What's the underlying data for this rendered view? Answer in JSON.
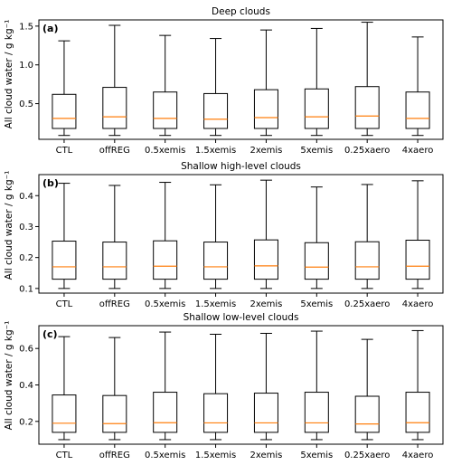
{
  "figure": {
    "ylabel": "All cloud water / g kg⁻¹"
  },
  "chart_data": [
    {
      "type": "box",
      "panel_label": "(a)",
      "title": "Deep clouds",
      "categories": [
        "CTL",
        "offREG",
        "0.5xemis",
        "1.5xemis",
        "2xemis",
        "5xemis",
        "0.25xaero",
        "4xaero"
      ],
      "ylim": [
        0.04,
        1.58
      ],
      "yticks": [
        0.5,
        1.0,
        1.5
      ],
      "ytick_labels": [
        "0.5",
        "1.0",
        "1.5"
      ],
      "boxes": [
        {
          "whislo": 0.09,
          "q1": 0.18,
          "med": 0.31,
          "q3": 0.62,
          "whishi": 1.31
        },
        {
          "whislo": 0.09,
          "q1": 0.18,
          "med": 0.33,
          "q3": 0.71,
          "whishi": 1.51
        },
        {
          "whislo": 0.09,
          "q1": 0.18,
          "med": 0.31,
          "q3": 0.65,
          "whishi": 1.38
        },
        {
          "whislo": 0.09,
          "q1": 0.18,
          "med": 0.3,
          "q3": 0.63,
          "whishi": 1.34
        },
        {
          "whislo": 0.09,
          "q1": 0.18,
          "med": 0.32,
          "q3": 0.68,
          "whishi": 1.45
        },
        {
          "whislo": 0.09,
          "q1": 0.18,
          "med": 0.33,
          "q3": 0.69,
          "whishi": 1.47
        },
        {
          "whislo": 0.09,
          "q1": 0.18,
          "med": 0.34,
          "q3": 0.72,
          "whishi": 1.55
        },
        {
          "whislo": 0.09,
          "q1": 0.18,
          "med": 0.31,
          "q3": 0.65,
          "whishi": 1.36
        }
      ]
    },
    {
      "type": "box",
      "panel_label": "(b)",
      "title": "Shallow high-level clouds",
      "categories": [
        "CTL",
        "offREG",
        "0.5xemis",
        "1.5xemis",
        "2xemis",
        "5xemis",
        "0.25xaero",
        "4xaero"
      ],
      "ylim": [
        0.085,
        0.468
      ],
      "yticks": [
        0.1,
        0.2,
        0.3,
        0.4
      ],
      "ytick_labels": [
        "0.1",
        "0.2",
        "0.3",
        "0.4"
      ],
      "boxes": [
        {
          "whislo": 0.1,
          "q1": 0.13,
          "med": 0.17,
          "q3": 0.253,
          "whishi": 0.44
        },
        {
          "whislo": 0.1,
          "q1": 0.13,
          "med": 0.17,
          "q3": 0.25,
          "whishi": 0.433
        },
        {
          "whislo": 0.1,
          "q1": 0.13,
          "med": 0.172,
          "q3": 0.254,
          "whishi": 0.443
        },
        {
          "whislo": 0.1,
          "q1": 0.13,
          "med": 0.17,
          "q3": 0.25,
          "whishi": 0.435
        },
        {
          "whislo": 0.1,
          "q1": 0.13,
          "med": 0.173,
          "q3": 0.257,
          "whishi": 0.45
        },
        {
          "whislo": 0.1,
          "q1": 0.13,
          "med": 0.169,
          "q3": 0.248,
          "whishi": 0.428
        },
        {
          "whislo": 0.1,
          "q1": 0.13,
          "med": 0.17,
          "q3": 0.251,
          "whishi": 0.436
        },
        {
          "whislo": 0.1,
          "q1": 0.13,
          "med": 0.172,
          "q3": 0.256,
          "whishi": 0.448
        }
      ]
    },
    {
      "type": "box",
      "panel_label": "(c)",
      "title": "Shallow low-level clouds",
      "categories": [
        "CTL",
        "offREG",
        "0.5xemis",
        "1.5xemis",
        "2xemis",
        "5xemis",
        "0.25xaero",
        "4xaero"
      ],
      "ylim": [
        0.075,
        0.725
      ],
      "yticks": [
        0.2,
        0.4,
        0.6
      ],
      "ytick_labels": [
        "0.2",
        "0.4",
        "0.6"
      ],
      "boxes": [
        {
          "whislo": 0.1,
          "q1": 0.14,
          "med": 0.19,
          "q3": 0.345,
          "whishi": 0.665
        },
        {
          "whislo": 0.1,
          "q1": 0.14,
          "med": 0.188,
          "q3": 0.342,
          "whishi": 0.66
        },
        {
          "whislo": 0.1,
          "q1": 0.14,
          "med": 0.193,
          "q3": 0.36,
          "whishi": 0.69
        },
        {
          "whislo": 0.1,
          "q1": 0.14,
          "med": 0.192,
          "q3": 0.352,
          "whishi": 0.678
        },
        {
          "whislo": 0.1,
          "q1": 0.14,
          "med": 0.192,
          "q3": 0.355,
          "whishi": 0.683
        },
        {
          "whislo": 0.1,
          "q1": 0.14,
          "med": 0.192,
          "q3": 0.36,
          "whishi": 0.695
        },
        {
          "whislo": 0.1,
          "q1": 0.14,
          "med": 0.186,
          "q3": 0.338,
          "whishi": 0.65
        },
        {
          "whislo": 0.1,
          "q1": 0.14,
          "med": 0.193,
          "q3": 0.36,
          "whishi": 0.698
        }
      ]
    }
  ],
  "colors": {
    "box": "#000000",
    "median": "#ff7f0e",
    "axes": "#000000",
    "background": "#ffffff"
  }
}
